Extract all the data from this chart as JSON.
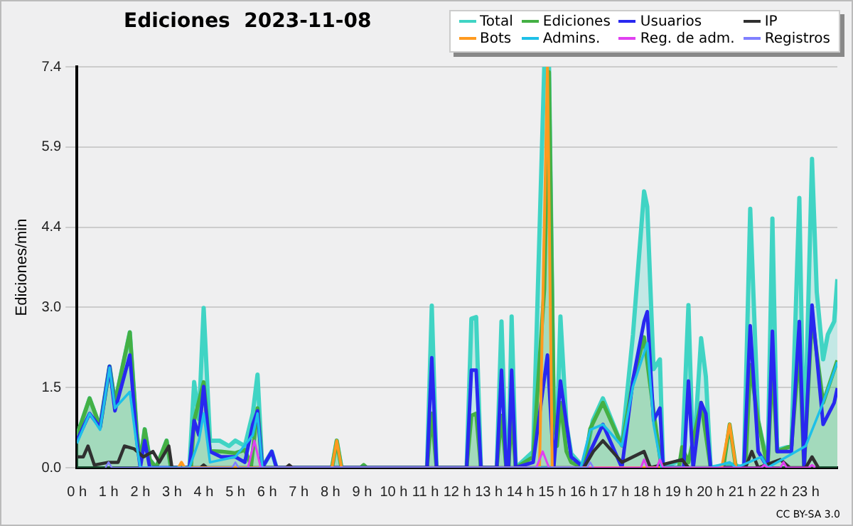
{
  "chart_data": {
    "type": "line",
    "title": "Ediciones  2023-11-08",
    "ylabel": "Ediciones/min",
    "annotations": [
      "CC BY-SA 3.0"
    ],
    "xlim": [
      0,
      24
    ],
    "xticks": [
      {
        "value": 0,
        "label": "0 h"
      },
      {
        "value": 1,
        "label": "1 h"
      },
      {
        "value": 2,
        "label": "2 h"
      },
      {
        "value": 3,
        "label": "3 h"
      },
      {
        "value": 4,
        "label": "4 h"
      },
      {
        "value": 5,
        "label": "5 h"
      },
      {
        "value": 6,
        "label": "6 h"
      },
      {
        "value": 7,
        "label": "7 h"
      },
      {
        "value": 8,
        "label": "8 h"
      },
      {
        "value": 9,
        "label": "9 h"
      },
      {
        "value": 10,
        "label": "10 h"
      },
      {
        "value": 11,
        "label": "11 h"
      },
      {
        "value": 12,
        "label": "12 h"
      },
      {
        "value": 13,
        "label": "13 h"
      },
      {
        "value": 14,
        "label": "14 h"
      },
      {
        "value": 15,
        "label": "15 h"
      },
      {
        "value": 16,
        "label": "16 h"
      },
      {
        "value": 17,
        "label": "17 h"
      },
      {
        "value": 18,
        "label": "18 h"
      },
      {
        "value": 19,
        "label": "19 h"
      },
      {
        "value": 20,
        "label": "20 h"
      },
      {
        "value": 21,
        "label": "21 h"
      },
      {
        "value": 22,
        "label": "22 h"
      },
      {
        "value": 23,
        "label": "23 h"
      }
    ],
    "ylim": [
      0,
      7.4
    ],
    "yticks": [
      {
        "value": 0,
        "label": "0.0"
      },
      {
        "value": 1.48,
        "label": "1.5"
      },
      {
        "value": 2.96,
        "label": "3.0"
      },
      {
        "value": 4.44,
        "label": "4.4"
      },
      {
        "value": 5.92,
        "label": "5.9"
      },
      {
        "value": 7.4,
        "label": "7.4"
      }
    ],
    "grid": "y",
    "legend": "top right",
    "marker": "none",
    "line_style": "solid",
    "series": [
      {
        "name": "Total",
        "type": "area",
        "color": "#40d4c4",
        "x": [
          0,
          0.4,
          0.73,
          1.03,
          1.2,
          1.67,
          1.89,
          2.0,
          2.14,
          2.3,
          2.5,
          2.83,
          2.97,
          3.55,
          3.7,
          3.85,
          4.0,
          4.2,
          4.5,
          4.8,
          5.0,
          5.3,
          5.55,
          5.7,
          5.85,
          6.15,
          6.3,
          8.05,
          8.2,
          8.35,
          11.05,
          11.2,
          11.35,
          12.3,
          12.45,
          12.6,
          12.75,
          13.25,
          13.4,
          13.55,
          13.62,
          13.72,
          13.85,
          14.4,
          14.75,
          14.9,
          15.05,
          15.15,
          15.26,
          15.45,
          15.6,
          16.0,
          16.28,
          16.6,
          17.2,
          17.55,
          17.9,
          18.0,
          18.2,
          18.4,
          18.5,
          19.1,
          19.3,
          19.45,
          19.7,
          19.85,
          20.0,
          20.6,
          21.05,
          21.25,
          21.5,
          21.8,
          21.95,
          22.1,
          22.55,
          22.8,
          22.95,
          23.2,
          23.35,
          23.55,
          23.7,
          23.9,
          24.0
        ],
        "values": [
          0.59,
          1.28,
          0.76,
          1.87,
          1.2,
          2.5,
          0.64,
          0.1,
          0.71,
          0.15,
          0,
          0.5,
          0,
          0,
          1.58,
          0.9,
          2.95,
          0.5,
          0.5,
          0.4,
          0.5,
          0.4,
          1.0,
          1.72,
          0,
          0.3,
          0,
          0,
          0.5,
          0,
          0,
          2.99,
          0,
          0,
          2.75,
          2.78,
          0,
          0,
          2.7,
          0,
          0,
          2.79,
          0,
          0.3,
          7.4,
          7.4,
          1.0,
          0.6,
          2.79,
          0.8,
          0.26,
          0,
          0.87,
          1.28,
          0.41,
          2.46,
          5.1,
          4.82,
          1.82,
          2.0,
          0,
          0.15,
          3.0,
          0.07,
          2.39,
          1.68,
          0,
          0.07,
          0,
          4.78,
          0.87,
          0.05,
          4.6,
          0.33,
          0.4,
          4.98,
          0.05,
          5.7,
          3.24,
          2.0,
          2.46,
          2.7,
          3.48
        ]
      },
      {
        "name": "Ediciones",
        "type": "area",
        "color": "#44b044",
        "x": [
          0,
          0.4,
          0.73,
          1.03,
          1.2,
          1.67,
          1.89,
          2.0,
          2.14,
          2.3,
          2.5,
          2.83,
          2.97,
          3.6,
          3.7,
          4.0,
          4.2,
          4.55,
          5.0,
          5.3,
          5.5,
          5.7,
          5.85,
          8.05,
          8.2,
          8.35,
          8.95,
          9.05,
          9.15,
          11.05,
          11.2,
          11.35,
          12.3,
          12.45,
          12.6,
          12.75,
          13.25,
          13.4,
          13.55,
          13.62,
          13.72,
          13.85,
          14.4,
          14.75,
          14.9,
          15.05,
          15.15,
          15.26,
          15.45,
          15.6,
          16.0,
          16.2,
          16.6,
          17.2,
          17.55,
          17.9,
          18.2,
          18.45,
          19.0,
          19.1,
          19.3,
          19.7,
          20.0,
          20.4,
          20.6,
          20.8,
          21.1,
          21.25,
          21.5,
          21.8,
          21.95,
          22.1,
          22.55,
          22.8,
          22.95,
          23.2,
          23.55,
          24.0
        ],
        "values": [
          0.59,
          1.28,
          0.76,
          1.87,
          1.2,
          2.5,
          0.64,
          0.1,
          0.71,
          0.15,
          0,
          0.5,
          0,
          0,
          0.87,
          1.58,
          0.31,
          0.3,
          0.27,
          0.33,
          0.04,
          1.1,
          0,
          0,
          0.5,
          0,
          0,
          0.05,
          0,
          0,
          1.0,
          0,
          0,
          0.96,
          1.0,
          0,
          0,
          0.96,
          0,
          0,
          0.96,
          0,
          0.2,
          3.3,
          7.3,
          1.0,
          0.4,
          1.2,
          0.3,
          0.1,
          0,
          0.72,
          1.2,
          0.41,
          1.6,
          2.41,
          1.04,
          0,
          0,
          0.38,
          0.1,
          1.2,
          0,
          0,
          0.8,
          0,
          0,
          1.9,
          0.87,
          0,
          1.9,
          0.3,
          0.4,
          2.2,
          0,
          2.8,
          1.2,
          1.98
        ]
      },
      {
        "name": "Usuarios",
        "color": "#2828f0",
        "x": [
          0,
          0.4,
          0.73,
          1.03,
          1.2,
          1.67,
          1.89,
          2.0,
          2.14,
          2.3,
          3.55,
          3.7,
          3.85,
          4.0,
          4.2,
          4.55,
          5.0,
          5.3,
          5.55,
          5.7,
          5.85,
          6.15,
          6.3,
          11.05,
          11.2,
          11.35,
          12.3,
          12.45,
          12.6,
          12.75,
          13.25,
          13.4,
          13.55,
          13.62,
          13.72,
          13.85,
          14.4,
          14.85,
          15.05,
          15.26,
          15.6,
          16.0,
          16.2,
          16.6,
          17.2,
          17.55,
          17.9,
          18.0,
          18.2,
          18.4,
          18.5,
          19.15,
          19.3,
          19.45,
          19.7,
          19.85,
          20.0,
          21.05,
          21.25,
          21.5,
          21.8,
          21.95,
          22.1,
          22.55,
          22.8,
          22.95,
          23.2,
          23.55,
          23.9,
          24.0
        ],
        "values": [
          0.5,
          1.0,
          0.74,
          1.87,
          1.05,
          2.08,
          0.5,
          0,
          0.5,
          0,
          0,
          0.87,
          0.6,
          1.5,
          0.3,
          0.2,
          0.2,
          0.1,
          0.8,
          1.05,
          0,
          0.3,
          0,
          0,
          2.03,
          0,
          0,
          1.8,
          1.8,
          0,
          0,
          1.8,
          0,
          0,
          1.8,
          0,
          0.1,
          2.08,
          0,
          1.6,
          0.2,
          0,
          0.3,
          0.8,
          0,
          1.63,
          2.7,
          2.88,
          0.87,
          1.1,
          0,
          0,
          1.6,
          0,
          1.2,
          1.0,
          0,
          0,
          2.62,
          0.3,
          0,
          2.52,
          0.3,
          0.3,
          2.7,
          0,
          3.0,
          0.8,
          1.2,
          1.47
        ]
      },
      {
        "name": "IP",
        "color": "#303030",
        "x": [
          0,
          0.2,
          0.35,
          0.55,
          1.0,
          1.3,
          1.5,
          1.8,
          2.1,
          2.4,
          2.6,
          2.9,
          3.0,
          3.9,
          4.0,
          4.1,
          6.6,
          6.7,
          6.8,
          16.0,
          16.3,
          16.6,
          17.2,
          17.9,
          18.1,
          19.1,
          19.3,
          21.1,
          21.3,
          21.5,
          22.2,
          22.5,
          23.0,
          23.2,
          23.4
        ],
        "values": [
          0.2,
          0.2,
          0.4,
          0.05,
          0.1,
          0.1,
          0.4,
          0.35,
          0.2,
          0.3,
          0.1,
          0.4,
          0,
          0,
          0.05,
          0,
          0,
          0.05,
          0,
          0,
          0.3,
          0.5,
          0.1,
          0.3,
          0,
          0.15,
          0,
          0,
          0.3,
          0,
          0.15,
          0,
          0,
          0.2,
          0
        ]
      },
      {
        "name": "Bots",
        "color": "#ff9a1f",
        "x": [
          3.2,
          3.3,
          3.4,
          8.05,
          8.2,
          8.35,
          14.6,
          14.85,
          15.0,
          20.35,
          20.6,
          20.8
        ],
        "values": [
          0,
          0.1,
          0,
          0,
          0.5,
          0,
          0,
          7.4,
          0,
          0,
          0.8,
          0
        ]
      },
      {
        "name": "Admins.",
        "color": "#1ec0e8",
        "x": [
          0,
          0.4,
          0.73,
          1.03,
          1.2,
          1.67,
          1.89,
          2.0,
          3.55,
          3.85,
          4.0,
          4.2,
          5.0,
          5.55,
          5.7,
          5.85,
          15.9,
          16.2,
          16.6,
          17.2,
          17.55,
          18.0,
          18.2,
          18.45,
          20.0,
          20.6,
          20.8,
          21.6,
          21.8,
          23.0,
          23.55,
          24.0
        ],
        "values": [
          0.45,
          1.0,
          0.7,
          1.85,
          1.1,
          1.4,
          0.4,
          0,
          0,
          0.5,
          1.0,
          0.1,
          0.2,
          0.6,
          1.0,
          0,
          0,
          0.7,
          0.8,
          0.4,
          1.5,
          2.3,
          0.8,
          0,
          0,
          0.1,
          0,
          0.2,
          0,
          0.4,
          1.2,
          1.95
        ]
      },
      {
        "name": "Reg. de adm.",
        "color": "#e040f0",
        "x": [
          5.4,
          5.6,
          5.8,
          14.5,
          14.7,
          14.9,
          17.8,
          17.9,
          18.0,
          18.3,
          18.4,
          18.5,
          21.6,
          21.7,
          21.8,
          22.2,
          22.3,
          22.4,
          23.1,
          23.2,
          23.3
        ],
        "values": [
          0,
          0.5,
          0,
          0,
          0.3,
          0,
          0,
          0.15,
          0,
          0,
          0.15,
          0,
          0,
          0.05,
          0,
          0,
          0.1,
          0,
          0,
          0.05,
          0
        ]
      },
      {
        "name": "Registros",
        "color": "#8080ff",
        "x": [
          0.9,
          1.0,
          1.1,
          4.9,
          5.0,
          5.1,
          16.1,
          16.2,
          16.3
        ],
        "values": [
          0,
          0.1,
          0,
          0,
          0.1,
          0,
          0,
          0.1,
          0
        ]
      }
    ]
  }
}
